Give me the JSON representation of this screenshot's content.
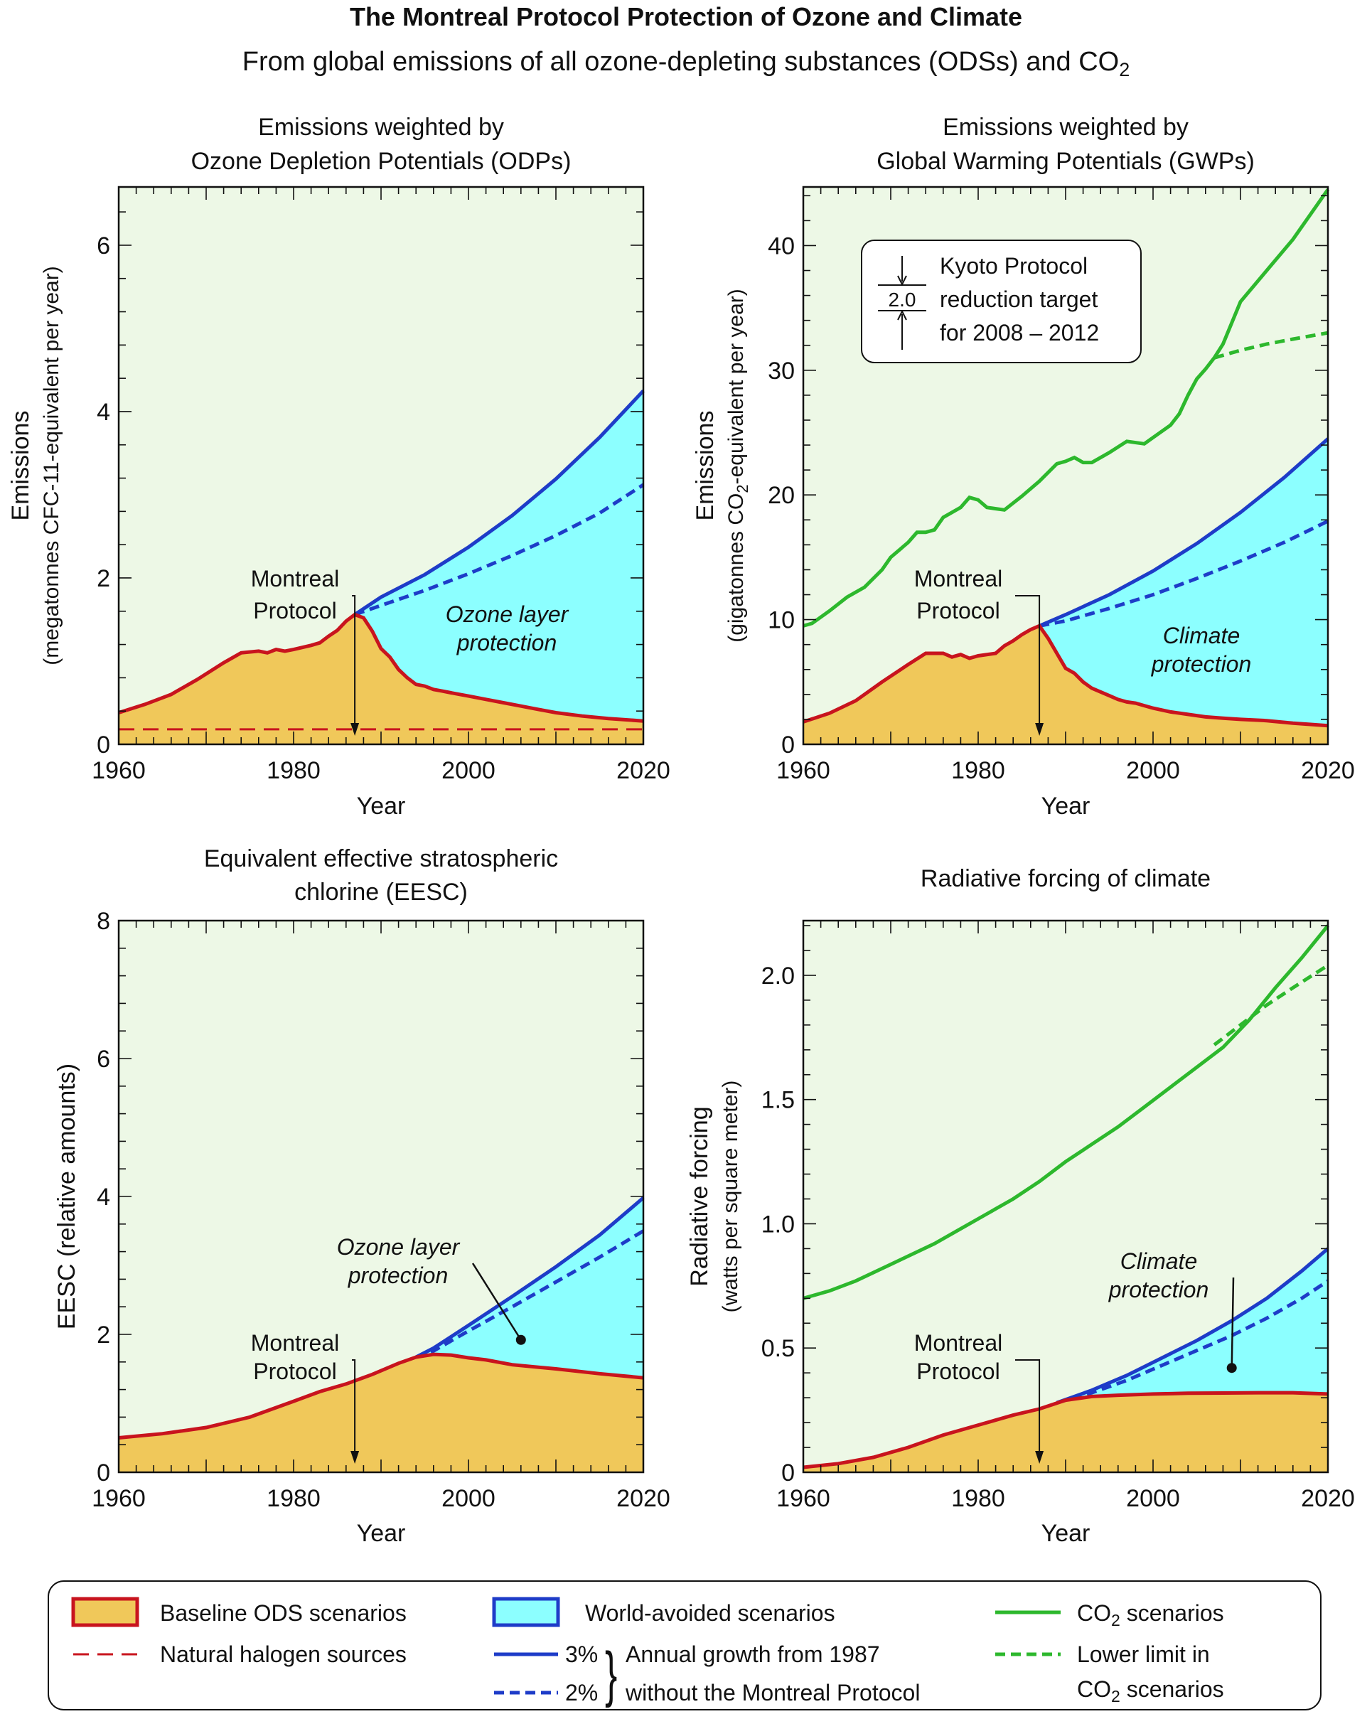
{
  "figure": {
    "title": "The Montreal Protocol Protection of Ozone and Climate",
    "subtitle_pre": "From global emissions of all ozone-depleting substances (ODSs) and CO",
    "subtitle_sub": "2"
  },
  "colors": {
    "plot_bg": "#edf8e6",
    "baseline_fill": "#f0c85a",
    "baseline_line": "#c8141e",
    "avoided_fill": "#8cffff",
    "world_avoided_line": "#1e3cc8",
    "co2_line": "#2db82d",
    "natural_line": "#c8141e"
  },
  "chart_data": [
    {
      "type": "area",
      "id": "odp",
      "title_lines": [
        "Emissions weighted by",
        "Ozone Depletion Potentials (ODPs)"
      ],
      "ylabel_lines": [
        [
          "Emissions"
        ],
        [
          "(megatonnes CFC-11-equivalent per year)"
        ]
      ],
      "xlabel": "Year",
      "xlim": [
        1960,
        2020
      ],
      "ylim": [
        0,
        6.7
      ],
      "xticks": [
        1960,
        1980,
        2000,
        2020
      ],
      "yticks": [
        0,
        2,
        4,
        6
      ],
      "ytick_labels": [
        "0",
        "2",
        "4",
        "6"
      ],
      "baseline": {
        "x": [
          1960,
          1963,
          1966,
          1969,
          1972,
          1974,
          1976,
          1977,
          1978,
          1979,
          1980,
          1982,
          1983,
          1984,
          1985,
          1986,
          1987,
          1988,
          1989,
          1990,
          1991,
          1992,
          1993,
          1994,
          1995,
          1996,
          1997,
          1998,
          1999,
          2000,
          2002,
          2004,
          2006,
          2008,
          2010,
          2013,
          2016,
          2020
        ],
        "y": [
          0.38,
          0.48,
          0.6,
          0.78,
          0.98,
          1.1,
          1.12,
          1.1,
          1.14,
          1.12,
          1.14,
          1.19,
          1.22,
          1.3,
          1.37,
          1.48,
          1.56,
          1.52,
          1.36,
          1.15,
          1.05,
          0.9,
          0.8,
          0.72,
          0.7,
          0.66,
          0.64,
          0.62,
          0.6,
          0.58,
          0.54,
          0.5,
          0.46,
          0.42,
          0.38,
          0.34,
          0.31,
          0.28
        ]
      },
      "world3": {
        "x": [
          1987,
          1990,
          1995,
          2000,
          2005,
          2010,
          2015,
          2020
        ],
        "y": [
          1.56,
          1.77,
          2.04,
          2.37,
          2.75,
          3.19,
          3.69,
          4.25
        ]
      },
      "world2": {
        "x": [
          1987,
          1990,
          1995,
          2000,
          2005,
          2010,
          2015,
          2020
        ],
        "y": [
          1.56,
          1.67,
          1.85,
          2.05,
          2.27,
          2.51,
          2.78,
          3.12
        ]
      },
      "natural": {
        "x": [
          1960,
          2020
        ],
        "y": [
          0.18,
          0.18
        ]
      },
      "annotations": {
        "protocol_lines": [
          "Montreal",
          "Protocol"
        ],
        "protection_lines": [
          "Ozone layer",
          "protection"
        ],
        "arrow_year": 1987
      }
    },
    {
      "type": "area",
      "id": "gwp",
      "title_lines": [
        "Emissions weighted by",
        "Global Warming Potentials (GWPs)"
      ],
      "ylabel_lines": [
        [
          "Emissions"
        ],
        [
          "(gigatonnes CO",
          "2",
          "-equivalent per year)"
        ]
      ],
      "xlabel": "Year",
      "xlim": [
        1960,
        2020
      ],
      "ylim": [
        0,
        44.7
      ],
      "xticks": [
        1960,
        1980,
        2000,
        2020
      ],
      "yticks": [
        0,
        10,
        20,
        30,
        40
      ],
      "ytick_labels": [
        "0",
        "10",
        "20",
        "30",
        "40"
      ],
      "baseline": {
        "x": [
          1960,
          1963,
          1966,
          1969,
          1972,
          1974,
          1976,
          1977,
          1978,
          1979,
          1980,
          1982,
          1983,
          1984,
          1985,
          1986,
          1987,
          1988,
          1989,
          1990,
          1991,
          1992,
          1993,
          1994,
          1995,
          1996,
          1997,
          1998,
          1999,
          2000,
          2002,
          2004,
          2006,
          2008,
          2010,
          2013,
          2016,
          2020
        ],
        "y": [
          1.8,
          2.5,
          3.5,
          5.0,
          6.4,
          7.3,
          7.3,
          7.0,
          7.2,
          6.9,
          7.1,
          7.3,
          7.9,
          8.3,
          8.8,
          9.2,
          9.5,
          8.5,
          7.3,
          6.1,
          5.7,
          5.0,
          4.5,
          4.2,
          3.9,
          3.6,
          3.4,
          3.3,
          3.1,
          2.9,
          2.6,
          2.4,
          2.2,
          2.1,
          2.0,
          1.9,
          1.7,
          1.5
        ]
      },
      "world3": {
        "x": [
          1987,
          1990,
          1995,
          2000,
          2005,
          2010,
          2015,
          2020
        ],
        "y": [
          9.5,
          10.4,
          12.0,
          13.9,
          16.1,
          18.6,
          21.4,
          24.5
        ]
      },
      "world2": {
        "x": [
          1987,
          1990,
          1995,
          2000,
          2005,
          2010,
          2015,
          2020
        ],
        "y": [
          9.5,
          9.9,
          10.9,
          12.0,
          13.3,
          14.7,
          16.2,
          17.9
        ]
      },
      "co2": {
        "x": [
          1960,
          1961,
          1963,
          1965,
          1967,
          1969,
          1970,
          1972,
          1973,
          1974,
          1975,
          1976,
          1977,
          1978,
          1979,
          1980,
          1981,
          1983,
          1985,
          1987,
          1988,
          1989,
          1990,
          1991,
          1992,
          1993,
          1995,
          1997,
          1999,
          2000,
          2002,
          2003,
          2004,
          2005,
          2006,
          2007,
          2008,
          2010,
          2013,
          2016,
          2020
        ],
        "y": [
          9.5,
          9.7,
          10.7,
          11.8,
          12.6,
          14.0,
          15.0,
          16.2,
          17.0,
          17.0,
          17.2,
          18.2,
          18.6,
          19.0,
          19.8,
          19.6,
          19.0,
          18.8,
          19.9,
          21.1,
          21.8,
          22.5,
          22.7,
          23.0,
          22.6,
          22.6,
          23.4,
          24.3,
          24.1,
          24.6,
          25.6,
          26.5,
          28.0,
          29.3,
          30.1,
          31.0,
          32.1,
          35.5,
          38.0,
          40.5,
          44.5
        ]
      },
      "co2_lower": {
        "x": [
          2007,
          2010,
          2013,
          2016,
          2020
        ],
        "y": [
          31.0,
          31.6,
          32.1,
          32.5,
          33.0
        ]
      },
      "kyoto": {
        "lines": [
          "Kyoto Protocol",
          "reduction target",
          "for 2008 – 2012"
        ],
        "value": "2.0"
      },
      "annotations": {
        "protocol_lines": [
          "Montreal",
          "Protocol"
        ],
        "protection_lines": [
          "Climate",
          "protection"
        ],
        "arrow_year": 1987
      }
    },
    {
      "type": "area",
      "id": "eesc",
      "title_lines": [
        "Equivalent effective stratospheric",
        "chlorine (EESC)"
      ],
      "ylabel_lines": [
        [
          "EESC (relative amounts)"
        ]
      ],
      "xlabel": "Year",
      "xlim": [
        1960,
        2020
      ],
      "ylim": [
        0,
        8
      ],
      "xticks": [
        1960,
        1980,
        2000,
        2020
      ],
      "yticks": [
        0,
        2,
        4,
        6,
        8
      ],
      "ytick_labels": [
        "0",
        "2",
        "4",
        "6",
        "8"
      ],
      "baseline": {
        "x": [
          1960,
          1965,
          1970,
          1975,
          1980,
          1983,
          1986,
          1989,
          1992,
          1994,
          1996,
          1998,
          2000,
          2002,
          2005,
          2010,
          2015,
          2020
        ],
        "y": [
          0.5,
          0.56,
          0.65,
          0.8,
          1.03,
          1.17,
          1.28,
          1.42,
          1.58,
          1.67,
          1.71,
          1.7,
          1.66,
          1.63,
          1.56,
          1.5,
          1.43,
          1.37
        ]
      },
      "world3": {
        "x": [
          1994,
          1996,
          2000,
          2005,
          2010,
          2015,
          2020
        ],
        "y": [
          1.67,
          1.8,
          2.13,
          2.55,
          2.98,
          3.44,
          3.98
        ]
      },
      "world2": {
        "x": [
          1994,
          1996,
          2000,
          2005,
          2010,
          2015,
          2020
        ],
        "y": [
          1.67,
          1.76,
          2.05,
          2.4,
          2.76,
          3.12,
          3.5
        ]
      },
      "annotations": {
        "protocol_lines": [
          "Montreal",
          "Protocol"
        ],
        "protection_lines": [
          "Ozone layer",
          "protection"
        ],
        "arrow_year": 1987,
        "pointer_end": [
          2006,
          1.92
        ]
      }
    },
    {
      "type": "area",
      "id": "rf",
      "title_lines": [
        "Radiative forcing of climate"
      ],
      "ylabel_lines": [
        [
          "Radiative forcing"
        ],
        [
          "(watts per square meter)"
        ]
      ],
      "xlabel": "Year",
      "xlim": [
        1960,
        2020
      ],
      "ylim": [
        0,
        2.22
      ],
      "xticks": [
        1960,
        1980,
        2000,
        2020
      ],
      "yticks": [
        0,
        0.5,
        1.0,
        1.5,
        2.0
      ],
      "ytick_labels": [
        "0",
        "0.5",
        "1.0",
        "1.5",
        "2.0"
      ],
      "baseline": {
        "x": [
          1960,
          1964,
          1968,
          1972,
          1976,
          1980,
          1984,
          1987,
          1990,
          1993,
          1996,
          2000,
          2004,
          2008,
          2012,
          2016,
          2020
        ],
        "y": [
          0.02,
          0.035,
          0.06,
          0.1,
          0.15,
          0.19,
          0.23,
          0.255,
          0.29,
          0.305,
          0.31,
          0.315,
          0.318,
          0.319,
          0.32,
          0.32,
          0.315
        ]
      },
      "world3": {
        "x": [
          1989,
          1993,
          1997,
          2001,
          2005,
          2009,
          2013,
          2017,
          2020
        ],
        "y": [
          0.28,
          0.33,
          0.39,
          0.46,
          0.53,
          0.61,
          0.7,
          0.81,
          0.9
        ]
      },
      "world2": {
        "x": [
          1989,
          1993,
          1997,
          2001,
          2005,
          2009,
          2013,
          2017,
          2020
        ],
        "y": [
          0.28,
          0.32,
          0.37,
          0.43,
          0.49,
          0.55,
          0.62,
          0.7,
          0.77
        ]
      },
      "co2": {
        "x": [
          1960,
          1963,
          1966,
          1969,
          1972,
          1975,
          1978,
          1981,
          1984,
          1987,
          1990,
          1993,
          1996,
          1999,
          2002,
          2005,
          2008,
          2011,
          2014,
          2017,
          2020
        ],
        "y": [
          0.7,
          0.73,
          0.77,
          0.82,
          0.87,
          0.92,
          0.98,
          1.04,
          1.1,
          1.17,
          1.25,
          1.32,
          1.39,
          1.47,
          1.55,
          1.63,
          1.71,
          1.82,
          1.95,
          2.07,
          2.2
        ]
      },
      "co2_lower": {
        "x": [
          2007,
          2010,
          2013,
          2016,
          2020
        ],
        "y": [
          1.72,
          1.8,
          1.88,
          1.95,
          2.04
        ]
      },
      "annotations": {
        "protocol_lines": [
          "Montreal",
          "Protocol"
        ],
        "protection_lines": [
          "Climate",
          "protection"
        ],
        "arrow_year": 1987,
        "pointer_end": [
          2009,
          0.42
        ]
      }
    }
  ],
  "legend": {
    "baseline": "Baseline ODS scenarios",
    "natural": "Natural halogen sources",
    "world_avoided": "World-avoided scenarios",
    "pct3": "3%",
    "pct2": "2%",
    "growth_line1": "Annual growth from 1987",
    "growth_line2": "without the Montreal Protocol",
    "co2_pre": "CO",
    "co2_sub": "2",
    "co2_post": " scenarios",
    "lower_line1": "Lower limit in",
    "lower_pre": "CO",
    "lower_sub": "2",
    "lower_post": " scenarios"
  }
}
